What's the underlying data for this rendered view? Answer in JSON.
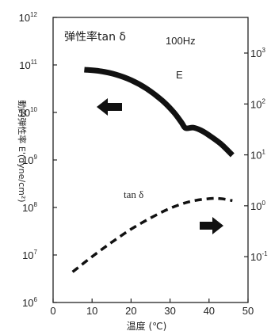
{
  "chart_data": {
    "type": "line",
    "title": "",
    "annotations": {
      "panel_title": "弹性率tan δ",
      "frequency": "100Hz",
      "E_label": "E",
      "tan_label": "tan δ"
    },
    "xlabel": "温度 (℃)",
    "ylabel_left": "動的弾性率 E'(dyne/cm²)",
    "ylabel_right": "",
    "x_ticks": [
      "0",
      "10",
      "20",
      "30",
      "40",
      "50"
    ],
    "xlim": [
      0,
      50
    ],
    "y_left": {
      "scale": "log",
      "range": [
        6,
        12
      ],
      "ticks": [
        {
          "exp": 6,
          "base": "10",
          "sup": "6"
        },
        {
          "exp": 7,
          "base": "10",
          "sup": "7"
        },
        {
          "exp": 8,
          "base": "10",
          "sup": "8"
        },
        {
          "exp": 9,
          "base": "10",
          "sup": "9"
        },
        {
          "exp": 10,
          "base": "10",
          "sup": "10"
        },
        {
          "exp": 11,
          "base": "10",
          "sup": "11"
        },
        {
          "exp": 12,
          "base": "10",
          "sup": "12"
        }
      ]
    },
    "y_right": {
      "scale": "log",
      "range": [
        -1.9,
        3.7
      ],
      "ticks": [
        {
          "exp": -1,
          "base": "10",
          "sup": "-1"
        },
        {
          "exp": 0,
          "base": "10",
          "sup": "0"
        },
        {
          "exp": 1,
          "base": "10",
          "sup": "1"
        },
        {
          "exp": 2,
          "base": "10",
          "sup": "2"
        },
        {
          "exp": 3,
          "base": "10",
          "sup": "3"
        }
      ]
    },
    "series": [
      {
        "name": "E",
        "axis": "left",
        "style": "solid",
        "color": "#111111",
        "x": [
          8,
          12,
          16,
          20,
          24,
          28,
          31,
          33,
          34,
          36,
          38,
          40,
          43,
          46
        ],
        "log10_y": [
          10.9,
          10.87,
          10.8,
          10.68,
          10.5,
          10.25,
          10.0,
          9.78,
          9.67,
          9.68,
          9.62,
          9.52,
          9.34,
          9.1
        ]
      },
      {
        "name": "tan δ",
        "axis": "right",
        "style": "dashed",
        "color": "#111111",
        "x": [
          5,
          10,
          15,
          20,
          25,
          30,
          35,
          40,
          43,
          46
        ],
        "log10_y": [
          -1.3,
          -1.0,
          -0.72,
          -0.46,
          -0.24,
          -0.05,
          0.08,
          0.14,
          0.14,
          0.1
        ]
      }
    ],
    "arrows": [
      {
        "direction": "left",
        "series": "E"
      },
      {
        "direction": "right",
        "series": "tan δ"
      }
    ]
  }
}
